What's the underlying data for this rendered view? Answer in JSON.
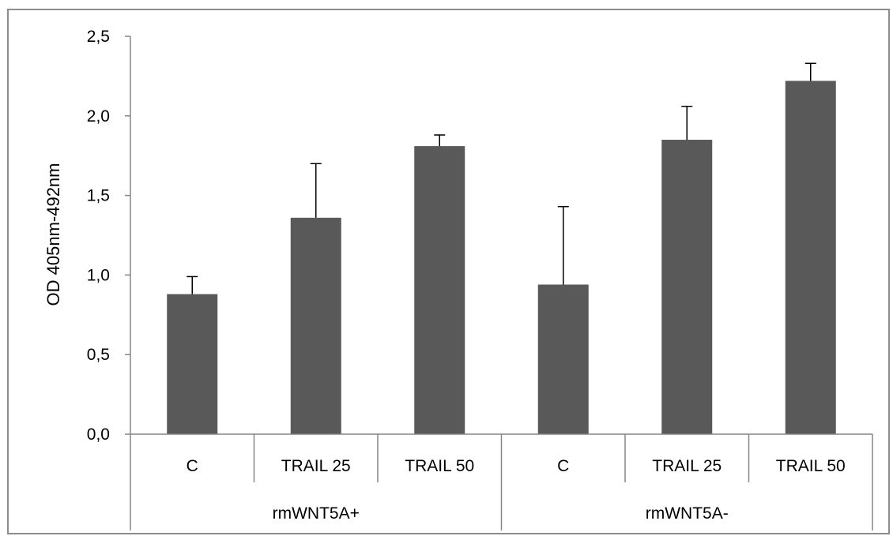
{
  "chart_data": {
    "type": "bar",
    "title": "",
    "xlabel": "",
    "ylabel": "OD 405nm-492nm",
    "ylim": [
      0,
      2.5
    ],
    "yticks": [
      "0,0",
      "0,5",
      "1,0",
      "1,5",
      "2,0",
      "2,5"
    ],
    "grid": false,
    "groups": [
      {
        "label": "rmWNT5A+",
        "categories": [
          "C",
          "TRAIL 25",
          "TRAIL 50"
        ]
      },
      {
        "label": "rmWNT5A-",
        "categories": [
          "C",
          "TRAIL 25",
          "TRAIL 50"
        ]
      }
    ],
    "categories": [
      "C",
      "TRAIL 25",
      "TRAIL 50",
      "C",
      "TRAIL 25",
      "TRAIL 50"
    ],
    "values": [
      0.88,
      1.36,
      1.81,
      0.94,
      1.85,
      2.22
    ],
    "errors": [
      0.11,
      0.34,
      0.07,
      0.49,
      0.21,
      0.11
    ],
    "bar_color": "#595959"
  }
}
